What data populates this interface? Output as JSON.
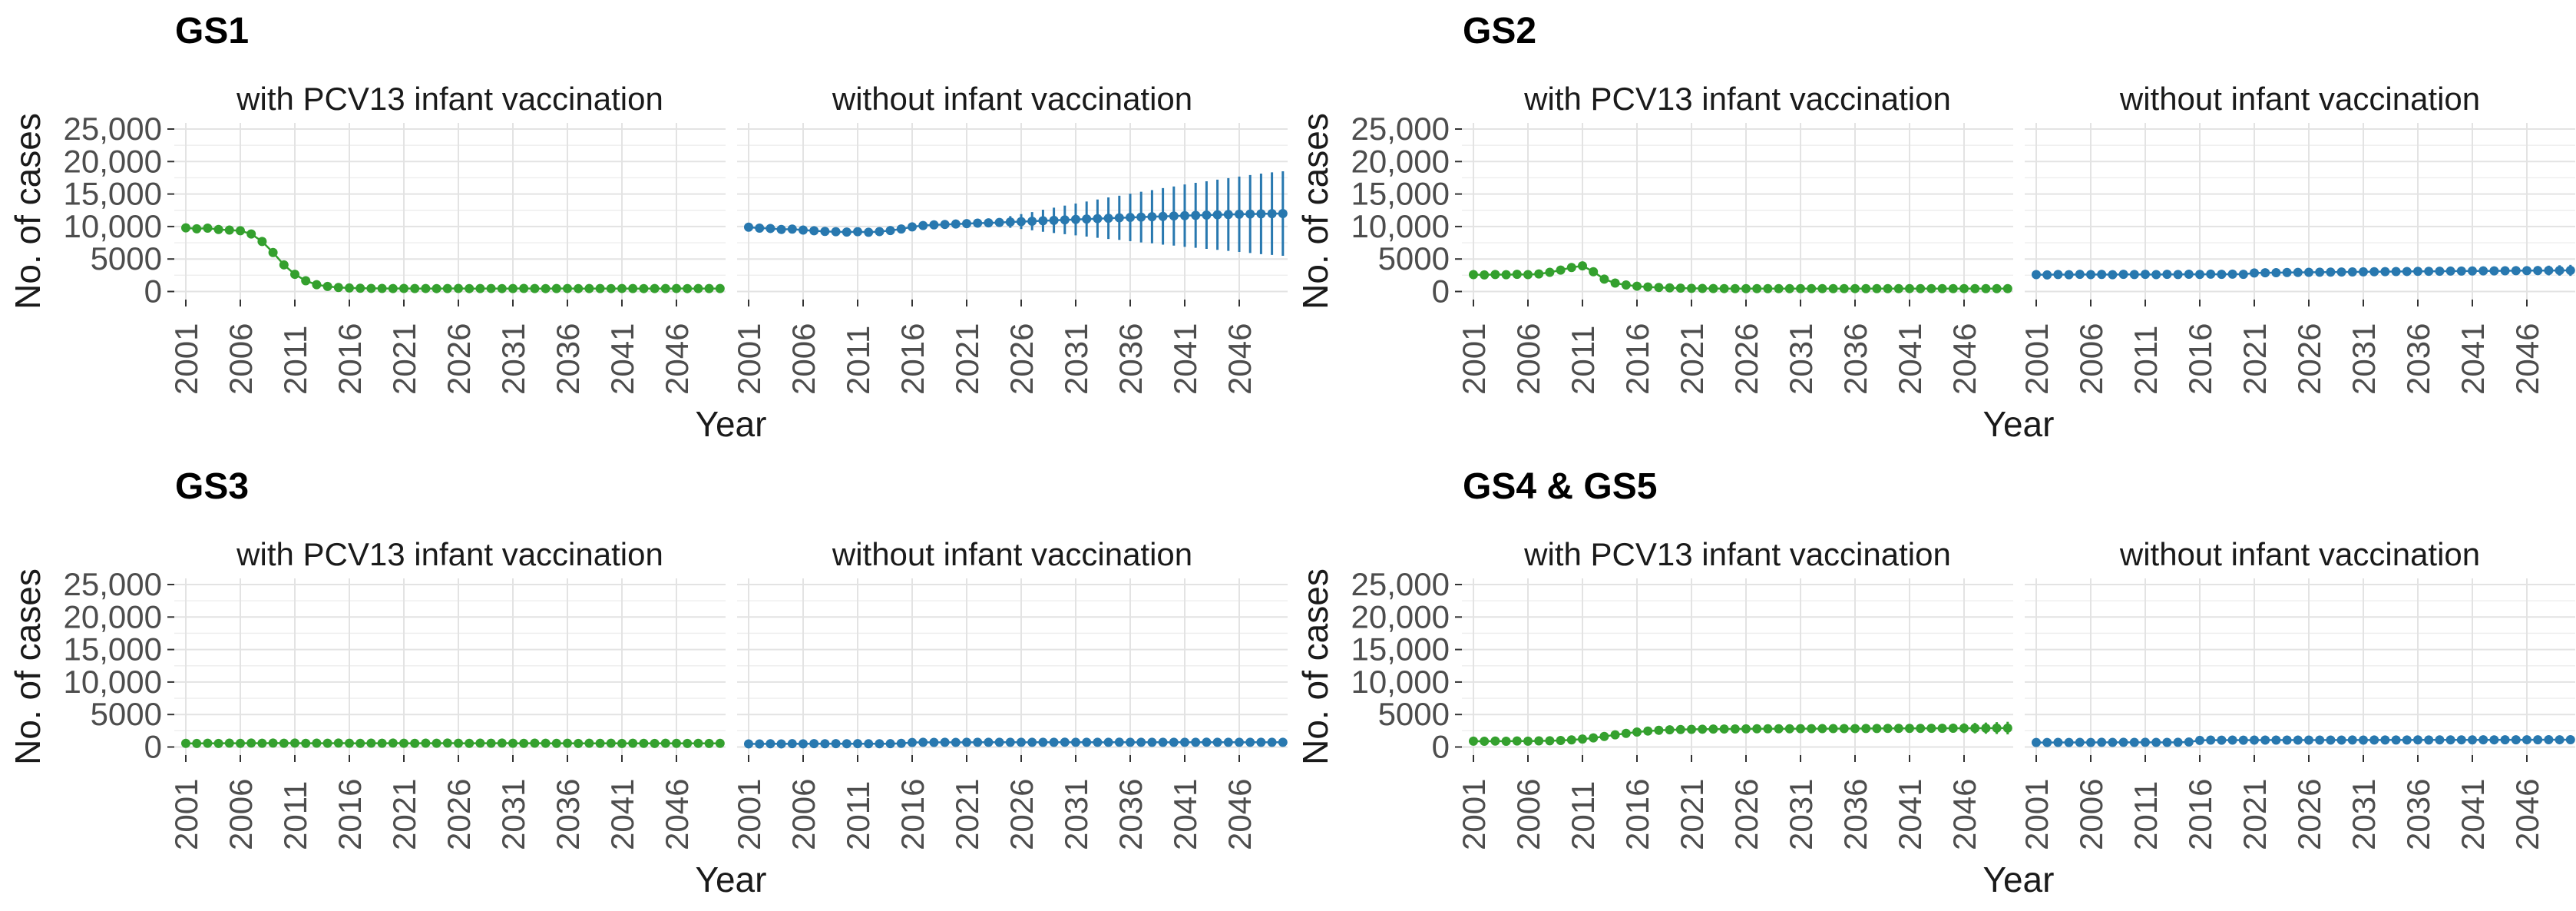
{
  "figure": {
    "xlabel": "Year",
    "ylabel": "No. of cases",
    "x_ticks": [
      2001,
      2006,
      2011,
      2016,
      2021,
      2026,
      2031,
      2036,
      2041,
      2046
    ],
    "y_ticks": [
      {
        "value": 0,
        "label": "0"
      },
      {
        "value": 5000,
        "label": "5000"
      },
      {
        "value": 10000,
        "label": "10,000"
      },
      {
        "value": 15000,
        "label": "15,000"
      },
      {
        "value": 20000,
        "label": "20,000"
      },
      {
        "value": 25000,
        "label": "25,000"
      }
    ],
    "year_start": 2001,
    "year_end": 2050,
    "colors": {
      "with": "#34a02e",
      "without": "#2878af"
    }
  },
  "chart_data": [
    {
      "type": "line",
      "title": "GS1",
      "xlabel": "Year",
      "ylabel": "No. of cases",
      "ylim": [
        0,
        25000
      ],
      "x_start": 2001,
      "facets": [
        {
          "label": "with PCV13 infant vaccination",
          "color_key": "with",
          "values": [
            9800,
            9650,
            9750,
            9550,
            9450,
            9350,
            8850,
            7700,
            6000,
            4100,
            2650,
            1650,
            1050,
            780,
            620,
            540,
            500,
            480,
            470,
            460,
            475,
            455,
            465,
            450,
            460,
            470,
            450,
            455,
            465,
            450,
            460,
            470,
            455,
            450,
            460,
            465,
            450,
            455,
            460,
            450,
            465,
            455,
            450,
            460,
            455,
            465,
            450,
            455,
            460,
            455
          ]
        },
        {
          "label": "without infant vaccination",
          "color_key": "without",
          "values": [
            9900,
            9750,
            9700,
            9550,
            9600,
            9450,
            9350,
            9250,
            9200,
            9150,
            9200,
            9120,
            9220,
            9380,
            9620,
            9950,
            10150,
            10250,
            10320,
            10380,
            10450,
            10520,
            10560,
            10620,
            10700,
            10760,
            10820,
            10890,
            10950,
            11020,
            11090,
            11150,
            11210,
            11280,
            11340,
            11400,
            11450,
            11510,
            11560,
            11620,
            11670,
            11720,
            11760,
            11810,
            11850,
            11890,
            11920,
            11950,
            11980,
            12000
          ],
          "err": [
            0,
            0,
            0,
            0,
            0,
            0,
            0,
            0,
            0,
            0,
            0,
            0,
            0,
            0,
            0,
            0,
            0,
            0,
            0,
            0,
            0,
            0,
            300,
            600,
            900,
            1150,
            1400,
            1700,
            1950,
            2200,
            2450,
            2700,
            2950,
            3200,
            3400,
            3650,
            3900,
            4100,
            4350,
            4550,
            4800,
            5000,
            5200,
            5400,
            5600,
            5800,
            6000,
            6200,
            6350,
            6500
          ]
        }
      ]
    },
    {
      "type": "line",
      "title": "GS2",
      "xlabel": "Year",
      "ylabel": "No. of cases",
      "ylim": [
        0,
        25000
      ],
      "x_start": 2001,
      "facets": [
        {
          "label": "with PCV13 infant vaccination",
          "color_key": "with",
          "values": [
            2600,
            2550,
            2620,
            2580,
            2650,
            2600,
            2700,
            2950,
            3300,
            3700,
            3950,
            3050,
            1900,
            1300,
            1000,
            820,
            700,
            620,
            560,
            520,
            490,
            470,
            460,
            450,
            445,
            440,
            445,
            440,
            445,
            440,
            445,
            440,
            445,
            440,
            445,
            450,
            440,
            445,
            440,
            445,
            450,
            440,
            445,
            440,
            445,
            450,
            440,
            445,
            440,
            445
          ]
        },
        {
          "label": "without infant vaccination",
          "color_key": "without",
          "values": [
            2600,
            2560,
            2620,
            2580,
            2640,
            2600,
            2630,
            2590,
            2650,
            2610,
            2640,
            2600,
            2650,
            2620,
            2660,
            2630,
            2670,
            2640,
            2680,
            2650,
            2850,
            2880,
            2900,
            2920,
            2940,
            2950,
            2970,
            2980,
            3000,
            3010,
            3030,
            3040,
            3060,
            3070,
            3080,
            3100,
            3110,
            3120,
            3140,
            3150,
            3160,
            3170,
            3180,
            3190,
            3200,
            3210,
            3220,
            3230,
            3240,
            3250
          ],
          "err": [
            0,
            0,
            0,
            0,
            0,
            0,
            0,
            0,
            0,
            0,
            0,
            0,
            0,
            0,
            0,
            0,
            0,
            0,
            0,
            0,
            0,
            0,
            0,
            0,
            0,
            0,
            0,
            0,
            0,
            0,
            0,
            0,
            0,
            0,
            0,
            150,
            200,
            250,
            300,
            350,
            400,
            450,
            500,
            550,
            600,
            650,
            700,
            750,
            800,
            850
          ]
        }
      ]
    },
    {
      "type": "line",
      "title": "GS3",
      "xlabel": "Year",
      "ylabel": "No. of cases",
      "ylim": [
        0,
        25000
      ],
      "x_start": 2001,
      "facets": [
        {
          "label": "with PCV13 infant vaccination",
          "color_key": "with",
          "values": [
            560,
            540,
            580,
            550,
            590,
            560,
            600,
            570,
            610,
            580,
            600,
            560,
            590,
            570,
            600,
            580,
            560,
            590,
            570,
            600,
            580,
            560,
            590,
            570,
            600,
            580,
            560,
            590,
            570,
            600,
            580,
            560,
            590,
            570,
            560,
            580,
            550,
            570,
            560,
            580,
            550,
            570,
            560,
            550,
            570,
            560,
            550,
            560,
            550,
            560
          ]
        },
        {
          "label": "without infant vaccination",
          "color_key": "without",
          "values": [
            480,
            470,
            500,
            480,
            510,
            490,
            520,
            500,
            520,
            500,
            510,
            495,
            505,
            510,
            560,
            700,
            720,
            710,
            720,
            715,
            725,
            720,
            730,
            720,
            730,
            725,
            720,
            730,
            725,
            735,
            720,
            730,
            725,
            720,
            735,
            725,
            720,
            730,
            725,
            720,
            730,
            725,
            735,
            720,
            730,
            725,
            720,
            730,
            725,
            730
          ]
        }
      ]
    },
    {
      "type": "line",
      "title": "GS4 & GS5",
      "xlabel": "Year",
      "ylabel": "No. of cases",
      "ylim": [
        0,
        25000
      ],
      "x_start": 2001,
      "facets": [
        {
          "label": "with PCV13 infant vaccination",
          "color_key": "with",
          "values": [
            900,
            880,
            920,
            890,
            930,
            900,
            940,
            960,
            1010,
            1090,
            1220,
            1400,
            1620,
            1870,
            2100,
            2300,
            2460,
            2570,
            2640,
            2690,
            2720,
            2740,
            2760,
            2770,
            2780,
            2790,
            2800,
            2800,
            2810,
            2810,
            2820,
            2820,
            2830,
            2830,
            2840,
            2840,
            2850,
            2850,
            2860,
            2860,
            2870,
            2870,
            2880,
            2880,
            2890,
            2890,
            2900,
            2900,
            2910,
            2910
          ],
          "err": [
            0,
            0,
            0,
            0,
            0,
            0,
            0,
            0,
            0,
            0,
            0,
            0,
            0,
            0,
            0,
            0,
            0,
            0,
            0,
            0,
            0,
            0,
            0,
            0,
            0,
            0,
            0,
            0,
            0,
            0,
            0,
            0,
            0,
            0,
            0,
            200,
            255,
            310,
            365,
            420,
            475,
            530,
            585,
            640,
            695,
            750,
            805,
            860,
            915,
            970
          ]
        },
        {
          "label": "without infant vaccination",
          "color_key": "without",
          "values": [
            700,
            690,
            710,
            695,
            715,
            700,
            720,
            705,
            725,
            710,
            720,
            705,
            715,
            720,
            770,
            1020,
            1060,
            1050,
            1060,
            1055,
            1065,
            1060,
            1070,
            1060,
            1070,
            1065,
            1060,
            1070,
            1065,
            1075,
            1070,
            1080,
            1075,
            1085,
            1080,
            1090,
            1085,
            1095,
            1090,
            1100,
            1095,
            1105,
            1100,
            1110,
            1105,
            1115,
            1110,
            1120,
            1115,
            1120
          ]
        }
      ]
    }
  ]
}
